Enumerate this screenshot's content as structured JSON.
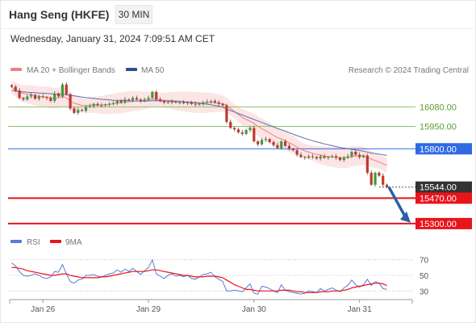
{
  "header": {
    "title": "Hang Seng (HKFE)",
    "timeframe": "30 MIN",
    "datetime": "Wednesday, January 31, 2024 7:09:51 AM CET"
  },
  "main_legend": [
    {
      "label": "MA 20 + Bollinger Bands",
      "color": "#f08080"
    },
    {
      "label": "MA 50",
      "color": "#2f4f8f"
    }
  ],
  "copyright": "Research © 2024 Trading Central",
  "colors": {
    "candle_up": "#3a9d3a",
    "candle_down": "#c0392b",
    "bollinger": "#fbdcdc",
    "ma20": "#f08080",
    "ma50": "#5a6fb0",
    "support": "#e8141c",
    "resistance_blue": "#2f6ae6",
    "target_green": "#8dc26f",
    "arrow": "#2b5fa6",
    "rsi": "#5b7bd6",
    "rsi_ma": "#e8141c"
  },
  "levels": [
    {
      "value": 16080.0,
      "label": "16080.00",
      "kind": "green"
    },
    {
      "value": 15950.0,
      "label": "15950.00",
      "kind": "green"
    },
    {
      "value": 15800.0,
      "label": "15800.00",
      "kind": "blue"
    },
    {
      "value": 15544.0,
      "label": "15544.00",
      "kind": "current"
    },
    {
      "value": 15470.0,
      "label": "15470.00",
      "kind": "red"
    },
    {
      "value": 15300.0,
      "label": "15300.00",
      "kind": "red"
    }
  ],
  "rsi_legend": [
    {
      "label": "RSI",
      "color": "#5b7bd6"
    },
    {
      "label": "9MA",
      "color": "#e8141c"
    }
  ],
  "rsi_levels": [
    "70",
    "50",
    "30"
  ],
  "chart_data": [
    {
      "type": "candlestick",
      "title": "",
      "x_tick_labels": [
        "Jan 26",
        "Jan 29",
        "Jan 30",
        "Jan 31"
      ],
      "x_ticks_at_bar": [
        8,
        35,
        62,
        89
      ],
      "y_range": [
        15267,
        16255
      ],
      "series": [
        {
          "name": "price",
          "close": [
            16215,
            16190,
            16140,
            16130,
            16150,
            16160,
            16135,
            16150,
            16145,
            16140,
            16120,
            16170,
            16150,
            16230,
            16165,
            16070,
            16040,
            16060,
            16055,
            16080,
            16085,
            16100,
            16090,
            16090,
            16095,
            16100,
            16105,
            16120,
            16110,
            16130,
            16125,
            16140,
            16130,
            16120,
            16130,
            16140,
            16180,
            16130,
            16120,
            16110,
            16110,
            16115,
            16110,
            16110,
            16105,
            16110,
            16100,
            16095,
            16100,
            16110,
            16115,
            16120,
            16110,
            16100,
            16090,
            15980,
            15940,
            15930,
            15910,
            15900,
            15925,
            15940,
            15850,
            15830,
            15860,
            15865,
            15845,
            15825,
            15805,
            15850,
            15820,
            15800,
            15790,
            15760,
            15745,
            15740,
            15750,
            15745,
            15735,
            15750,
            15740,
            15745,
            15750,
            15740,
            15725,
            15740,
            15750,
            15780,
            15760,
            15745,
            15755,
            15640,
            15560,
            15640,
            15620,
            15560,
            15544
          ]
        },
        {
          "name": "MA 20",
          "values": [
            16210,
            16196,
            16178,
            16170,
            16165,
            16162,
            16155,
            16150,
            16148,
            16145,
            16140,
            16138,
            16140,
            16150,
            16140,
            16120,
            16105,
            16098,
            16090,
            16088,
            16090,
            16095,
            16094,
            16093,
            16095,
            16098,
            16100,
            16105,
            16107,
            16112,
            16114,
            16118,
            16120,
            16120,
            16122,
            16126,
            16132,
            16130,
            16128,
            16125,
            16124,
            16122,
            16120,
            16118,
            16116,
            16114,
            16112,
            16110,
            16108,
            16108,
            16108,
            16109,
            16108,
            16106,
            16102,
            16090,
            16070,
            16050,
            16030,
            16010,
            15996,
            15985,
            15970,
            15950,
            15935,
            15920,
            15905,
            15890,
            15875,
            15866,
            15855,
            15840,
            15828,
            15812,
            15798,
            15786,
            15778,
            15770,
            15762,
            15758,
            15752,
            15748,
            15746,
            15744,
            15740,
            15740,
            15742,
            15748,
            15752,
            15752,
            15754,
            15745,
            15730,
            15722,
            15712,
            15700,
            15690
          ]
        },
        {
          "name": "MA 50",
          "values": [
            16190,
            16186,
            16182,
            16180,
            16178,
            16176,
            16175,
            16173,
            16172,
            16170,
            16168,
            16166,
            16165,
            16164,
            16162,
            16158,
            16154,
            16150,
            16146,
            16142,
            16140,
            16137,
            16134,
            16131,
            16129,
            16127,
            16125,
            16124,
            16123,
            16122,
            16121,
            16120,
            16120,
            16119,
            16119,
            16120,
            16121,
            16121,
            16120,
            16119,
            16118,
            16117,
            16116,
            16115,
            16113,
            16111,
            16109,
            16107,
            16104,
            16101,
            16098,
            16094,
            16090,
            16085,
            16078,
            16066,
            16056,
            16046,
            16036,
            16026,
            16016,
            16006,
            15996,
            15986,
            15976,
            15966,
            15956,
            15946,
            15936,
            15927,
            15918,
            15908,
            15898,
            15888,
            15879,
            15870,
            15862,
            15854,
            15847,
            15840,
            15833,
            15827,
            15821,
            15815,
            15809,
            15804,
            15800,
            15796,
            15792,
            15788,
            15784,
            15778,
            15772,
            15768,
            15764,
            15760,
            15756
          ]
        }
      ]
    },
    {
      "type": "line",
      "title": "",
      "y_range": [
        20,
        80
      ],
      "series": [
        {
          "name": "RSI",
          "values": [
            66,
            62,
            55,
            50,
            49,
            50,
            52,
            50,
            47,
            46,
            48,
            55,
            54,
            64,
            52,
            42,
            40,
            44,
            45,
            50,
            50,
            51,
            49,
            48,
            50,
            52,
            53,
            57,
            54,
            58,
            55,
            59,
            55,
            51,
            56,
            60,
            70,
            52,
            49,
            46,
            50,
            52,
            49,
            50,
            48,
            50,
            46,
            45,
            48,
            51,
            52,
            54,
            48,
            45,
            42,
            30,
            30,
            31,
            30,
            29,
            34,
            39,
            27,
            26,
            36,
            35,
            33,
            30,
            28,
            38,
            31,
            29,
            28,
            27,
            26,
            27,
            30,
            29,
            28,
            33,
            30,
            32,
            34,
            31,
            29,
            34,
            37,
            44,
            38,
            35,
            38,
            45,
            37,
            42,
            40,
            33,
            32
          ]
        },
        {
          "name": "9MA",
          "values": [
            60,
            60,
            59,
            58,
            56,
            55,
            54,
            53,
            52,
            51,
            50,
            50,
            51,
            52,
            52,
            50,
            49,
            48,
            47,
            47,
            47,
            47,
            47,
            48,
            48,
            49,
            50,
            51,
            52,
            53,
            54,
            55,
            55,
            55,
            55,
            56,
            57,
            57,
            56,
            55,
            54,
            53,
            52,
            51,
            50,
            50,
            49,
            48,
            48,
            48,
            49,
            49,
            49,
            48,
            47,
            44,
            41,
            38,
            36,
            34,
            32,
            32,
            31,
            30,
            30,
            30,
            30,
            30,
            30,
            31,
            31,
            31,
            30,
            29,
            29,
            28,
            28,
            28,
            28,
            29,
            29,
            29,
            30,
            30,
            30,
            31,
            32,
            34,
            35,
            36,
            37,
            38,
            39,
            40,
            40,
            39,
            37
          ]
        }
      ]
    }
  ]
}
